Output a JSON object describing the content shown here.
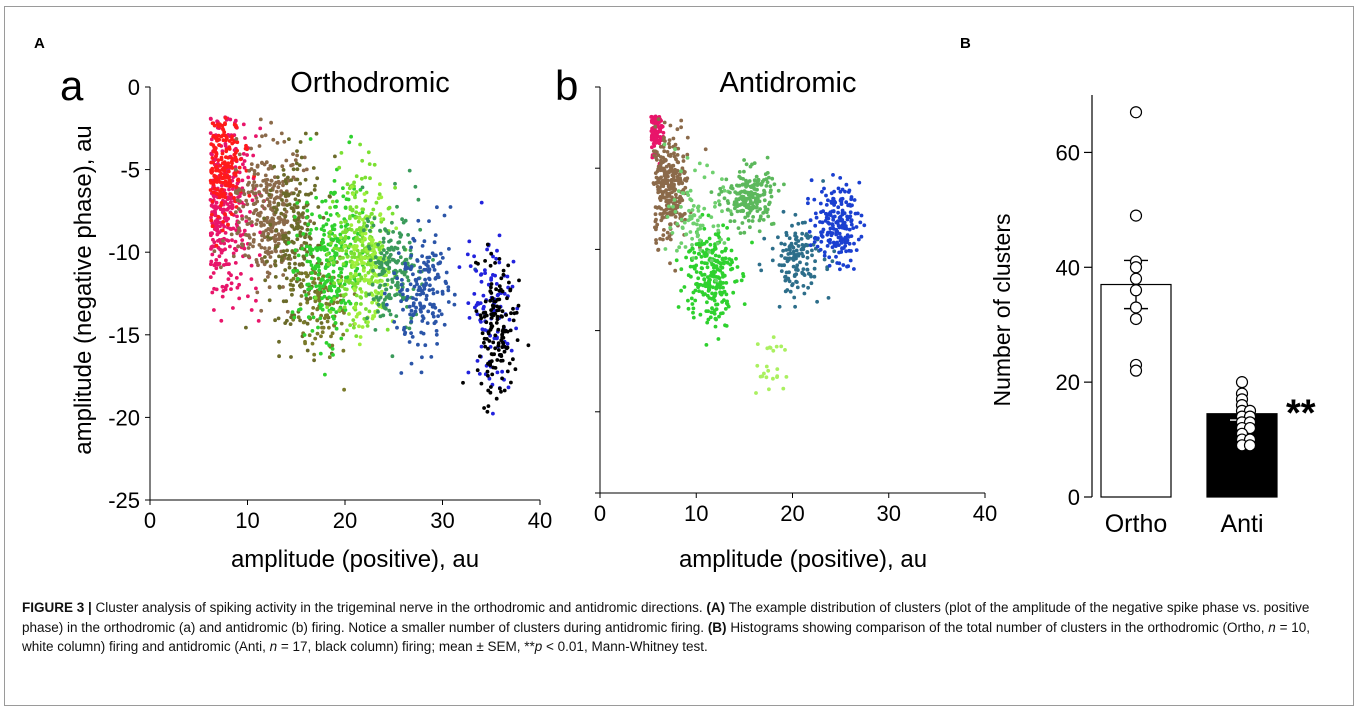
{
  "panels": {
    "A": "A",
    "B": "B"
  },
  "chart_data": [
    {
      "type": "scatter",
      "subpanel": "a",
      "title": "Orthodromic",
      "xlabel": "amplitude (positive), au",
      "ylabel": "amplitude (negative phase), au",
      "xlim": [
        0,
        40
      ],
      "ylim": [
        -25,
        0
      ],
      "xticks": [
        "0",
        "10",
        "20",
        "30",
        "40"
      ],
      "yticks": [
        "0",
        "-5",
        "-10",
        "-15",
        "-20",
        "-25"
      ],
      "clusters": [
        {
          "color": "#e8156a",
          "cx": 8.0,
          "cy": -7.5,
          "sx": 1.4,
          "sy": 2.6,
          "n": 330,
          "xmin": 6.2
        },
        {
          "color": "#ff1a1a",
          "cx": 7.4,
          "cy": -4.8,
          "sx": 1.0,
          "sy": 1.6,
          "n": 180,
          "xmin": 6.2
        },
        {
          "color": "#8b6a4a",
          "cx": 12.0,
          "cy": -7.5,
          "sx": 1.6,
          "sy": 2.2,
          "n": 300,
          "xmin": 6.2
        },
        {
          "color": "#6b6b2a",
          "cx": 15.0,
          "cy": -9.5,
          "sx": 1.6,
          "sy": 2.8,
          "n": 210
        },
        {
          "color": "#7a7a2a",
          "cx": 17.5,
          "cy": -13.0,
          "sx": 1.4,
          "sy": 1.6,
          "n": 110
        },
        {
          "color": "#2ed12e",
          "cx": 18.5,
          "cy": -10.5,
          "sx": 1.6,
          "sy": 2.2,
          "n": 260
        },
        {
          "color": "#7be032",
          "cx": 21.5,
          "cy": -10.0,
          "sx": 1.5,
          "sy": 2.4,
          "n": 260
        },
        {
          "color": "#9fef3c",
          "cx": 22.5,
          "cy": -11.0,
          "sx": 1.1,
          "sy": 1.8,
          "n": 120
        },
        {
          "color": "#3a9a5a",
          "cx": 25.0,
          "cy": -11.0,
          "sx": 1.6,
          "sy": 2.0,
          "n": 170
        },
        {
          "color": "#2b55a8",
          "cx": 28.0,
          "cy": -12.5,
          "sx": 1.4,
          "sy": 1.8,
          "n": 170
        },
        {
          "color": "#2222dd",
          "cx": 35.0,
          "cy": -13.0,
          "sx": 1.3,
          "sy": 2.4,
          "n": 100
        },
        {
          "color": "#000000",
          "cx": 35.5,
          "cy": -14.5,
          "sx": 1.0,
          "sy": 2.0,
          "n": 150
        }
      ]
    },
    {
      "type": "scatter",
      "subpanel": "b",
      "title": "Antidromic",
      "xlabel": "amplitude (positive), au",
      "xlim": [
        0,
        40
      ],
      "ylim": [
        -25,
        0
      ],
      "xticks": [
        "0",
        "10",
        "20",
        "30",
        "40"
      ],
      "clusters": [
        {
          "color": "#e8156a",
          "cx": 5.8,
          "cy": -2.5,
          "sx": 0.35,
          "sy": 1.0,
          "n": 90,
          "xmin": 5.3
        },
        {
          "color": "#8b6a4a",
          "cx": 7.2,
          "cy": -6.0,
          "sx": 1.0,
          "sy": 1.7,
          "n": 280,
          "xmin": 5.5
        },
        {
          "color": "#2ed12e",
          "cx": 11.5,
          "cy": -11.5,
          "sx": 1.3,
          "sy": 1.6,
          "n": 240
        },
        {
          "color": "#6fd06f",
          "cx": 10.0,
          "cy": -8.0,
          "sx": 1.4,
          "sy": 1.4,
          "n": 90
        },
        {
          "color": "#5cb85c",
          "cx": 15.5,
          "cy": -6.8,
          "sx": 1.3,
          "sy": 0.9,
          "n": 200
        },
        {
          "color": "#2d6e8a",
          "cx": 20.5,
          "cy": -10.5,
          "sx": 1.4,
          "sy": 1.1,
          "n": 140
        },
        {
          "color": "#1a3fd0",
          "cx": 24.5,
          "cy": -8.5,
          "sx": 1.2,
          "sy": 1.2,
          "n": 190
        },
        {
          "color": "#aaf060",
          "cx": 17.8,
          "cy": -17.3,
          "sx": 0.8,
          "sy": 1.3,
          "n": 24
        }
      ]
    },
    {
      "type": "bar",
      "subpanel": "B",
      "categories": [
        "Ortho",
        "Anti"
      ],
      "values": [
        37,
        14.5
      ],
      "sem": [
        4.2,
        1.1
      ],
      "bar_colors": [
        "#ffffff",
        "#000000"
      ],
      "ylabel": "Number of clusters",
      "ylim": [
        0,
        70
      ],
      "yticks": [
        "0",
        "20",
        "40",
        "60"
      ],
      "significance": "**",
      "points": [
        [
          67,
          49,
          41,
          40,
          38,
          36,
          33,
          31,
          23,
          22
        ],
        [
          20,
          18,
          17,
          16,
          15,
          15,
          14,
          14,
          13,
          13,
          12,
          12,
          11,
          10,
          10,
          9,
          9
        ]
      ]
    }
  ],
  "caption": {
    "label": "FIGURE 3 |",
    "text1": " Cluster analysis of spiking activity in the trigeminal nerve in the orthodromic and antidromic directions. ",
    "bA": "(A)",
    "text2": " The example distribution of clusters (plot of the amplitude of the negative spike phase vs. positive phase) in the orthodromic (a) and antidromic (b) firing. Notice a smaller number of clusters during antidromic firing.",
    "bB": "(B)",
    "text3": " Histograms showing comparison of the total number of clusters in the orthodromic (Ortho, ",
    "n1": "n",
    "text4": " = 10, white column) firing and antidromic (Anti, ",
    "n2": "n",
    "text5": " = 17, black column) firing; mean ± SEM, **",
    "p": "p",
    "text6": " < 0.01, Mann-Whitney test."
  }
}
